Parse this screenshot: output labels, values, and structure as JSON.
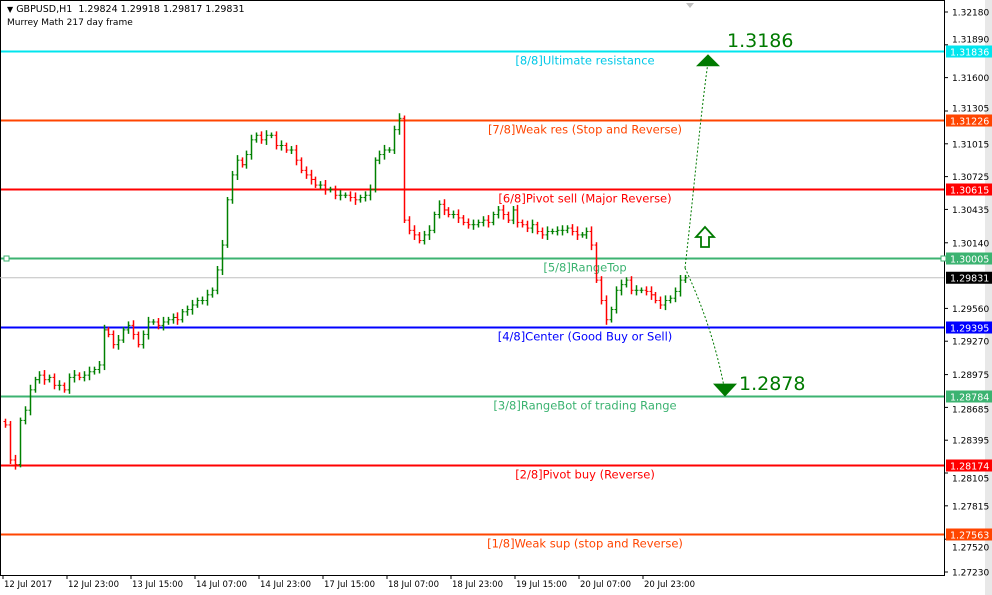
{
  "header": {
    "symbol": "GBPUSD,H1",
    "ohlc": "1.29824 1.29918 1.29817 1.29831",
    "indicator": "Murrey Math 217 day frame"
  },
  "chart_data": {
    "type": "ohlc-bar",
    "symbol": "GBPUSD",
    "timeframe": "H1",
    "ylim": [
      1.2723,
      1.3218
    ],
    "grid": false,
    "y_ticks": [
      "1.32180",
      "1.31890",
      "1.31600",
      "1.31305",
      "1.31015",
      "1.30725",
      "1.30435",
      "1.30140",
      "1.29560",
      "1.29270",
      "1.28975",
      "1.28685",
      "1.28395",
      "1.28105",
      "1.27815",
      "1.27520",
      "1.27230"
    ],
    "x_ticks": [
      "12 Jul 2017",
      "12 Jul 23:00",
      "13 Jul 15:00",
      "14 Jul 07:00",
      "14 Jul 23:00",
      "17 Jul 15:00",
      "18 Jul 07:00",
      "18 Jul 23:00",
      "19 Jul 15:00",
      "20 Jul 07:00",
      "20 Jul 23:00"
    ],
    "colors": {
      "up": "#008000",
      "down": "#ff0000"
    },
    "closes": [
      1.2853,
      1.2822,
      1.2818,
      1.2857,
      1.2866,
      1.2884,
      1.2893,
      1.2897,
      1.2893,
      1.2895,
      1.2888,
      1.2888,
      1.2884,
      1.2895,
      1.2897,
      1.2895,
      1.2897,
      1.29,
      1.2902,
      1.2906,
      1.2937,
      1.2933,
      1.2924,
      1.2928,
      1.2937,
      1.2941,
      1.2933,
      1.2924,
      1.2933,
      1.2944,
      1.2944,
      1.2941,
      1.2944,
      1.2946,
      1.2948,
      1.2946,
      1.2953,
      1.2955,
      1.2959,
      1.2963,
      1.2963,
      1.2968,
      1.2972,
      1.299,
      1.3012,
      1.3052,
      1.3074,
      1.3087,
      1.3083,
      1.3092,
      1.3105,
      1.3109,
      1.3105,
      1.3109,
      1.3109,
      1.31,
      1.31,
      1.3096,
      1.3096,
      1.3087,
      1.3078,
      1.3074,
      1.307,
      1.3065,
      1.3065,
      1.3061,
      1.3061,
      1.3056,
      1.3056,
      1.3056,
      1.3054,
      1.3052,
      1.3054,
      1.3056,
      1.3061,
      1.3087,
      1.3092,
      1.3096,
      1.3096,
      1.3114,
      1.3124,
      1.3034,
      1.3025,
      1.3021,
      1.3016,
      1.3021,
      1.3025,
      1.3039,
      1.3048,
      1.3043,
      1.3039,
      1.3039,
      1.3036,
      1.3032,
      1.303,
      1.303,
      1.3032,
      1.3034,
      1.3032,
      1.3039,
      1.3043,
      1.3039,
      1.3034,
      1.3043,
      1.3032,
      1.303,
      1.3027,
      1.303,
      1.3024,
      1.3021,
      1.3024,
      1.3024,
      1.3025,
      1.3025,
      1.3027,
      1.3024,
      1.3021,
      1.3021,
      1.3024,
      1.3012,
      1.2981,
      1.2963,
      1.2946,
      1.2955,
      1.2972,
      1.2977,
      1.2981,
      1.2972,
      1.2972,
      1.2972,
      1.2971,
      1.2968,
      1.2963,
      1.2959,
      1.2963,
      1.2965,
      1.2971,
      1.2981,
      1.29831
    ],
    "current_price": {
      "value": 1.29831,
      "label": "1.29831",
      "line_color": "#c0c0c0",
      "label_bg": "#000000"
    },
    "levels": [
      {
        "name": "[8/8]Ultimate resistance",
        "value": 1.31836,
        "label": "1.31836",
        "color": "#00e5ee",
        "text_color": "#00c8e8"
      },
      {
        "name": "[7/8]Weak res (Stop and Reverse)",
        "value": 1.31226,
        "label": "1.31226",
        "color": "#ff4500",
        "text_color": "#ff4500"
      },
      {
        "name": "[6/8]Pivot sell (Major Reverse)",
        "value": 1.30615,
        "label": "1.30615",
        "color": "#ff0000",
        "text_color": "#ff0000"
      },
      {
        "name": "[5/8]RangeTop",
        "value": 1.30005,
        "label": "1.30005",
        "color": "#3cb371",
        "text_color": "#3cb371"
      },
      {
        "name": "[4/8]Center (Good Buy or Sell)",
        "value": 1.29395,
        "label": "1.29395",
        "color": "#0000ff",
        "text_color": "#0000ff"
      },
      {
        "name": "[3/8]RangeBot of trading Range",
        "value": 1.28784,
        "label": "1.28784",
        "color": "#3cb371",
        "text_color": "#3cb371"
      },
      {
        "name": "[2/8]Pivot buy (Reverse)",
        "value": 1.28174,
        "label": "1.28174",
        "color": "#ff0000",
        "text_color": "#ff0000"
      },
      {
        "name": "[1/8]Weak sup (stop and Reverse)",
        "value": 1.27563,
        "label": "1.27563",
        "color": "#ff4500",
        "text_color": "#ff4500"
      }
    ],
    "annotations": {
      "target_up": {
        "label": "1.3186",
        "value": 1.3186
      },
      "target_down": {
        "label": "1.2878",
        "value": 1.2878
      },
      "color": "#007a00"
    }
  }
}
